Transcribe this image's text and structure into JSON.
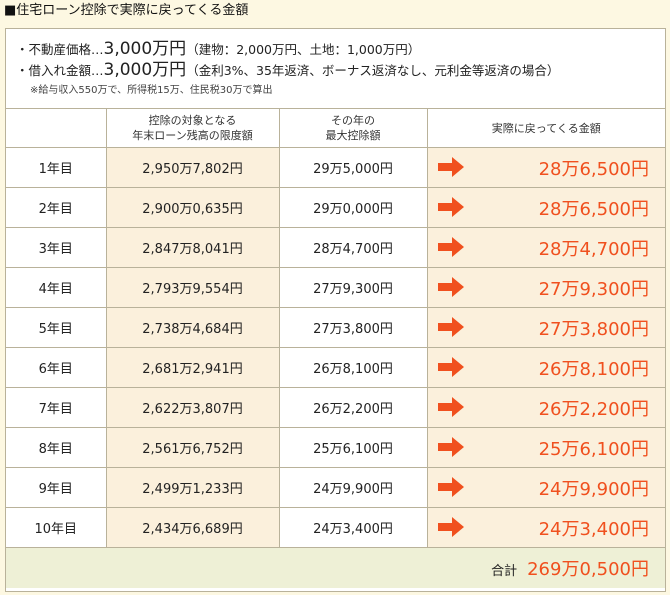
{
  "title": "■住宅ローン控除で実際に戻ってくる金額",
  "info": {
    "line1_prefix": "・不動産価格…",
    "line1_value": "3,000万円",
    "line1_note": "（建物：2,000万円、土地：1,000万円）",
    "line2_prefix": "・借入れ金額…",
    "line2_value": "3,000万円",
    "line2_note": "（金利3%、35年返済、ボーナス返済なし、元利金等返済の場合）",
    "footnote": "※給与収入550万で、所得税15万、住民税30万で算出"
  },
  "headers": {
    "year": "",
    "limit_line1": "控除の対象となる",
    "limit_line2": "年末ローン残高の限度額",
    "ded_line1": "その年の",
    "ded_line2": "最大控除額",
    "back": "実際に戻ってくる金額"
  },
  "rows": [
    {
      "year": "1年目",
      "limit": "2,950万7,802円",
      "deduction": "29万5,000円",
      "back": "28万6,500円"
    },
    {
      "year": "2年目",
      "limit": "2,900万0,635円",
      "deduction": "29万0,000円",
      "back": "28万6,500円"
    },
    {
      "year": "3年目",
      "limit": "2,847万8,041円",
      "deduction": "28万4,700円",
      "back": "28万4,700円"
    },
    {
      "year": "4年目",
      "limit": "2,793万9,554円",
      "deduction": "27万9,300円",
      "back": "27万9,300円"
    },
    {
      "year": "5年目",
      "limit": "2,738万4,684円",
      "deduction": "27万3,800円",
      "back": "27万3,800円"
    },
    {
      "year": "6年目",
      "limit": "2,681万2,941円",
      "deduction": "26万8,100円",
      "back": "26万8,100円"
    },
    {
      "year": "7年目",
      "limit": "2,622万3,807円",
      "deduction": "26万2,200円",
      "back": "26万2,200円"
    },
    {
      "year": "8年目",
      "limit": "2,561万6,752円",
      "deduction": "25万6,100円",
      "back": "25万6,100円"
    },
    {
      "year": "9年目",
      "limit": "2,499万1,233円",
      "deduction": "24万9,900円",
      "back": "24万9,900円"
    },
    {
      "year": "10年目",
      "limit": "2,434万6,689円",
      "deduction": "24万3,400円",
      "back": "24万3,400円"
    }
  ],
  "total": {
    "label": "合計",
    "value": "269万0,500円"
  },
  "colors": {
    "accent": "#f0501e",
    "highlight": "#fbf0dc",
    "total_bg": "#eef0d6"
  },
  "icons": {
    "row_arrow": "arrow-right-icon"
  }
}
